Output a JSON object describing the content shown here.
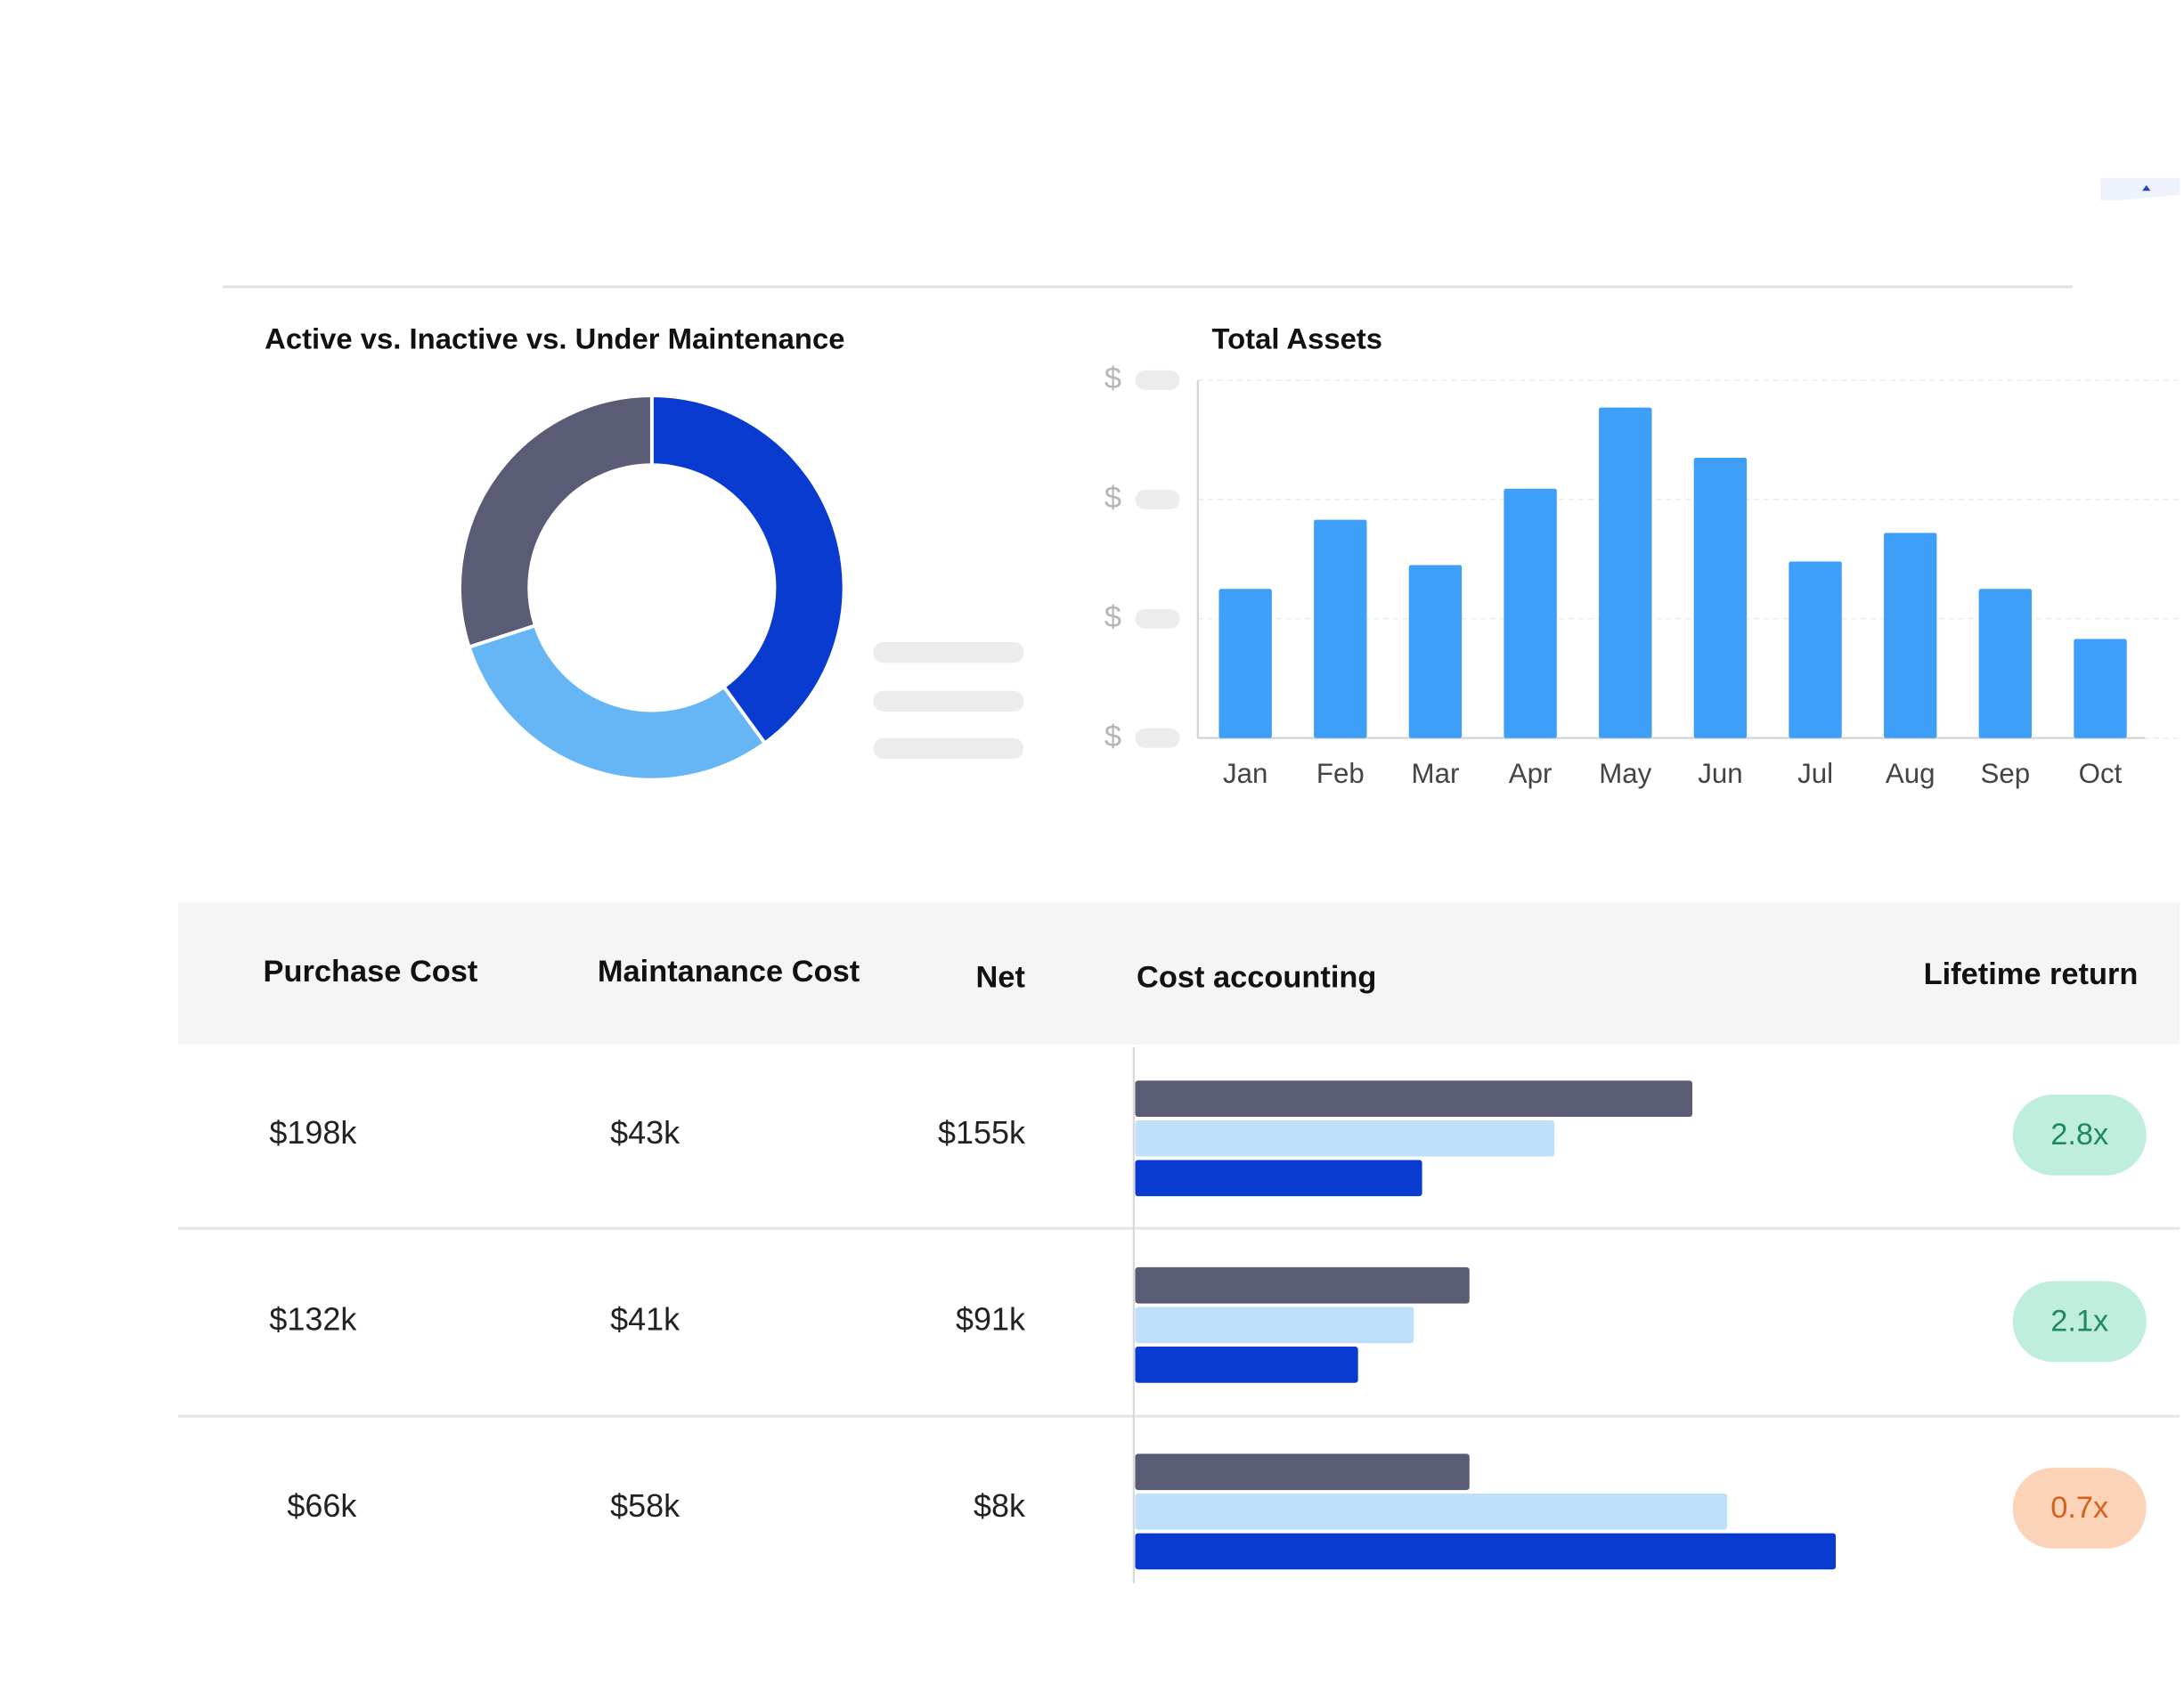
{
  "chart_data": [
    {
      "type": "donut",
      "title": "Active vs. Inactive vs. Under Maintenance",
      "values": [
        40,
        30,
        30
      ],
      "colors": [
        "#0a3bd0",
        "#66b5f5",
        "#5a5b75"
      ]
    },
    {
      "type": "bar",
      "title": "Total Assets",
      "categories": [
        "Jan",
        "Feb",
        "Mar",
        "Apr",
        "May",
        "Jun",
        "Jul",
        "Aug",
        "Sep",
        "Oct"
      ],
      "values": [
        1.25,
        1.83,
        1.45,
        2.09,
        2.77,
        2.35,
        1.48,
        1.72,
        1.25,
        0.83
      ],
      "color": "#3d9ff7",
      "ylim": [
        0,
        3
      ],
      "yticks": [
        {
          "value": 0,
          "label": "$"
        },
        {
          "value": 1,
          "label": "$"
        },
        {
          "value": 2,
          "label": "$"
        },
        {
          "value": 3,
          "label": "$"
        }
      ],
      "grid": true
    }
  ],
  "table": {
    "headers": [
      "Purchase Cost",
      "Maintanance Cost",
      "Net",
      "Cost accounting",
      "Lifetime return"
    ],
    "cost_bar_colors": [
      "#5a5b75",
      "#bfe0fb",
      "#0a3bd0"
    ],
    "cost_xlim": [
      0,
      750
    ],
    "rows": [
      {
        "cells": [
          "$198k",
          "$43k",
          "$155k"
        ],
        "cost_bars": [
          400,
          301,
          206
        ],
        "lifetime_return": "2.8x",
        "return_color": "#1f8a5b",
        "return_bg": "#bfeedd"
      },
      {
        "cells": [
          "$132k",
          "$41k",
          "$91k"
        ],
        "cost_bars": [
          240,
          200,
          160
        ],
        "lifetime_return": "2.1x",
        "return_color": "#1f8a5b",
        "return_bg": "#bfeedd"
      },
      {
        "cells": [
          "$66k",
          "$58k",
          "$8k"
        ],
        "cost_bars": [
          240,
          425,
          503
        ],
        "lifetime_return": "0.7x",
        "return_color": "#d4621e",
        "return_bg": "#fbd3b8"
      }
    ]
  }
}
